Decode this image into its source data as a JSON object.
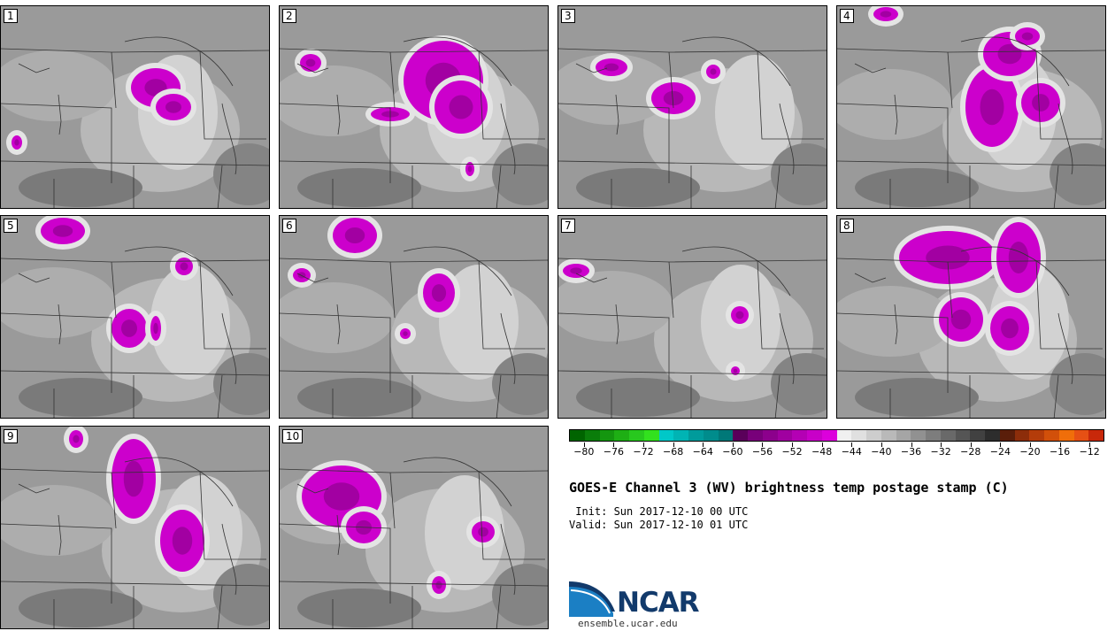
{
  "panels": [
    {
      "label": "1"
    },
    {
      "label": "2"
    },
    {
      "label": "3"
    },
    {
      "label": "4"
    },
    {
      "label": "5"
    },
    {
      "label": "6"
    },
    {
      "label": "7"
    },
    {
      "label": "8"
    },
    {
      "label": "9"
    },
    {
      "label": "10"
    }
  ],
  "colorbar": {
    "colors": [
      "#006400",
      "#0a7d0a",
      "#14960f",
      "#1eaf14",
      "#28c81e",
      "#32e11e",
      "#00c8c8",
      "#00b4b4",
      "#009b9b",
      "#008c8c",
      "#007878",
      "#5a005a",
      "#78007a",
      "#8c008c",
      "#a000a0",
      "#b400b4",
      "#c800c8",
      "#dc00dc",
      "#f0f0f0",
      "#e0e0e0",
      "#cdcdcd",
      "#b9b9b9",
      "#a5a5a5",
      "#919191",
      "#7d7d7d",
      "#696969",
      "#555555",
      "#414141",
      "#2d2d2d",
      "#5a1e0a",
      "#8c2d0a",
      "#b43c0a",
      "#d2500a",
      "#f06e0a",
      "#e65014",
      "#c8280a"
    ],
    "tick_labels": [
      "−80",
      "−76",
      "−72",
      "−68",
      "−64",
      "−60",
      "−56",
      "−52",
      "−48",
      "−44",
      "−40",
      "−36",
      "−32",
      "−28",
      "−24",
      "−20",
      "−16",
      "−12"
    ],
    "tick_values": [
      -80,
      -76,
      -72,
      -68,
      -64,
      -60,
      -56,
      -52,
      -48,
      -44,
      -40,
      -36,
      -32,
      -28,
      -24,
      -20,
      -16,
      -12
    ],
    "range": [
      -82,
      -10
    ]
  },
  "title": "GOES-E Channel 3 (WV) brightness temp postage stamp (C)",
  "init": " Init: Sun 2017-12-10 00 UTC",
  "valid": "Valid: Sun 2017-12-10 01 UTC",
  "logo_text": "NCAR",
  "website": "ensemble.ucar.edu",
  "colors": {
    "magenta": "#cc00cc",
    "light": "#e6e6e6",
    "mid": "#b5b5b5",
    "dark": "#707070"
  }
}
